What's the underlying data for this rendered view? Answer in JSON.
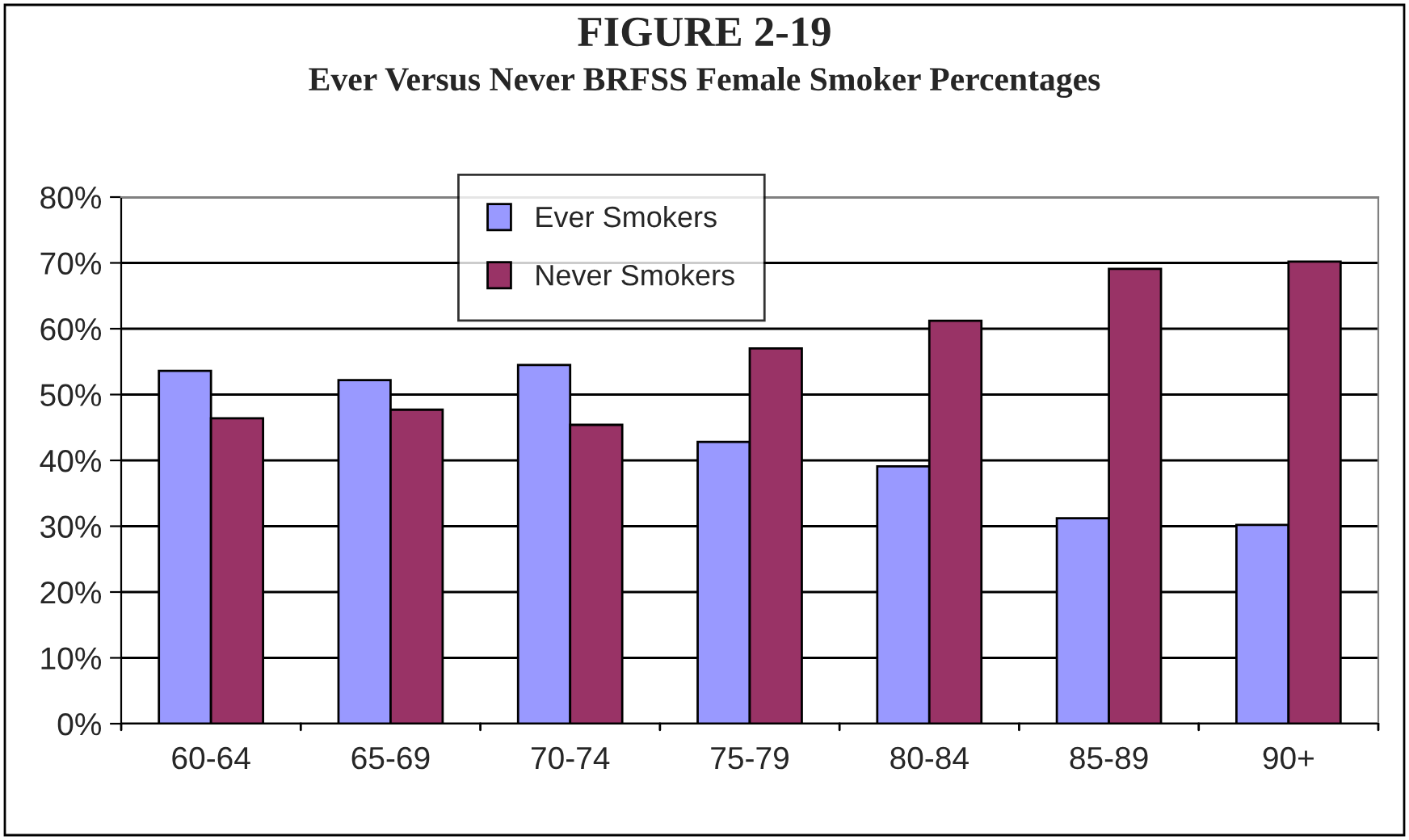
{
  "chart_data": {
    "type": "bar",
    "title": "FIGURE 2-19",
    "subtitle": "Ever Versus Never BRFSS Female Smoker Percentages",
    "categories": [
      "60-64",
      "65-69",
      "70-74",
      "75-79",
      "80-84",
      "85-89",
      "90+"
    ],
    "series": [
      {
        "name": "Ever Smokers",
        "color": "#9999ff",
        "values": [
          53.6,
          52.2,
          54.5,
          42.8,
          39.1,
          31.2,
          30.2
        ]
      },
      {
        "name": "Never Smokers",
        "color": "#993366",
        "values": [
          46.4,
          47.7,
          45.4,
          57.0,
          61.2,
          69.1,
          70.2
        ]
      }
    ],
    "ylim": [
      0,
      80
    ],
    "yticks": [
      {
        "value": 0,
        "label": "0%"
      },
      {
        "value": 10,
        "label": "10%"
      },
      {
        "value": 20,
        "label": "20%"
      },
      {
        "value": 30,
        "label": "30%"
      },
      {
        "value": 40,
        "label": "40%"
      },
      {
        "value": 50,
        "label": "50%"
      },
      {
        "value": 60,
        "label": "60%"
      },
      {
        "value": 70,
        "label": "70%"
      },
      {
        "value": 80,
        "label": "80%"
      }
    ],
    "grid": "y",
    "legend": "top"
  }
}
